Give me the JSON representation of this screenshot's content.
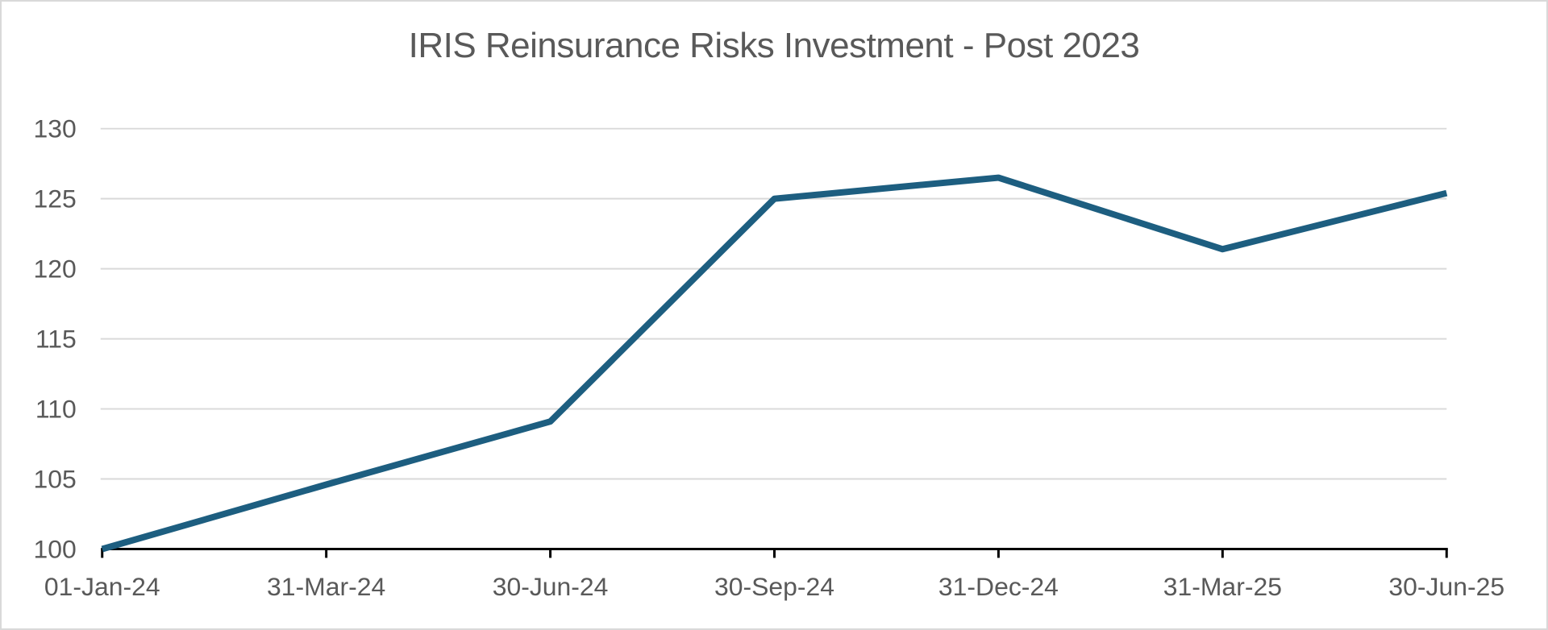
{
  "chart_data": {
    "type": "line",
    "title": "IRIS Reinsurance Risks Investment - Post 2023",
    "categories": [
      "01-Jan-24",
      "31-Mar-24",
      "30-Jun-24",
      "30-Sep-24",
      "31-Dec-24",
      "31-Mar-25",
      "30-Jun-25"
    ],
    "values": [
      100,
      104.6,
      109.1,
      125,
      126.5,
      121.4,
      125.4
    ],
    "xlabel": "",
    "ylabel": "",
    "ylim": [
      100,
      130
    ],
    "yticks": [
      100,
      105,
      110,
      115,
      120,
      125,
      130
    ],
    "grid": "horizontal",
    "legend": "none"
  },
  "colors": {
    "line": "#1D5E80",
    "gridline": "#D9D9D9",
    "axis": "#000000",
    "label": "#595959",
    "title": "#595959",
    "border": "#D9D9D9",
    "background": "#FFFFFF"
  }
}
